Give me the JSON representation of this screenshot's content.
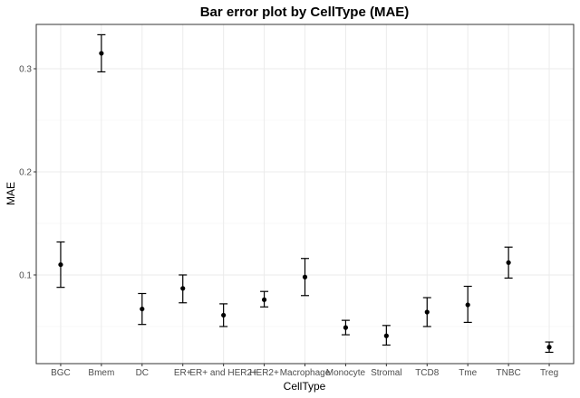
{
  "chart_data": {
    "type": "scatter",
    "title": "Bar error plot by CellType (MAE)",
    "xlabel": "CellType",
    "ylabel": "MAE",
    "ylim": [
      0.014,
      0.343
    ],
    "yticks": [
      0.1,
      0.2,
      0.3
    ],
    "ytick_labels": [
      "0.1",
      "0.2",
      "0.3"
    ],
    "grid": true,
    "categories": [
      "BGC",
      "Bmem",
      "DC",
      "ER+",
      "ER+ and HER2+",
      "HER2+",
      "Macrophage",
      "Monocyte",
      "Stromal",
      "TCD8",
      "Tme",
      "TNBC",
      "Treg"
    ],
    "series": [
      {
        "values": [
          0.11,
          0.315,
          0.067,
          0.087,
          0.061,
          0.076,
          0.098,
          0.049,
          0.041,
          0.064,
          0.071,
          0.112,
          0.03
        ],
        "lower": [
          0.088,
          0.297,
          0.052,
          0.073,
          0.05,
          0.069,
          0.08,
          0.042,
          0.032,
          0.05,
          0.054,
          0.097,
          0.025
        ],
        "upper": [
          0.132,
          0.333,
          0.082,
          0.1,
          0.072,
          0.084,
          0.116,
          0.056,
          0.051,
          0.078,
          0.089,
          0.127,
          0.035
        ]
      }
    ]
  }
}
